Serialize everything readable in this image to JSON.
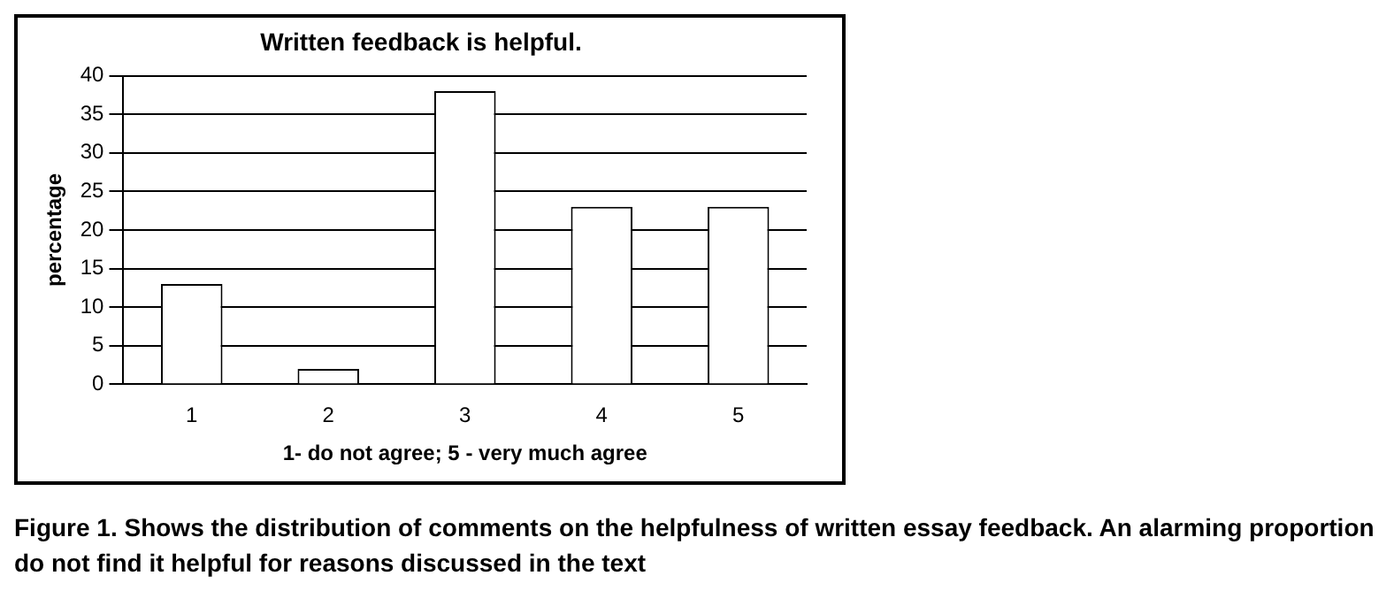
{
  "chart_data": {
    "type": "bar",
    "title": "Written feedback is helpful.",
    "xlabel": "1- do not agree; 5 - very much agree",
    "ylabel": "percentage",
    "categories": [
      "1",
      "2",
      "3",
      "4",
      "5"
    ],
    "values": [
      13,
      2,
      38,
      23,
      23
    ],
    "color": "#ffffff",
    "ylim": [
      0,
      40
    ],
    "yticks": [
      0,
      5,
      10,
      15,
      20,
      25,
      30,
      35,
      40
    ],
    "grid": "y",
    "legend": false,
    "annotations": [
      "Figure 1. Shows the distribution of comments on the helpfulness of written essay feedback. An alarming proportion do not find it helpful for reasons discussed in the text"
    ]
  }
}
